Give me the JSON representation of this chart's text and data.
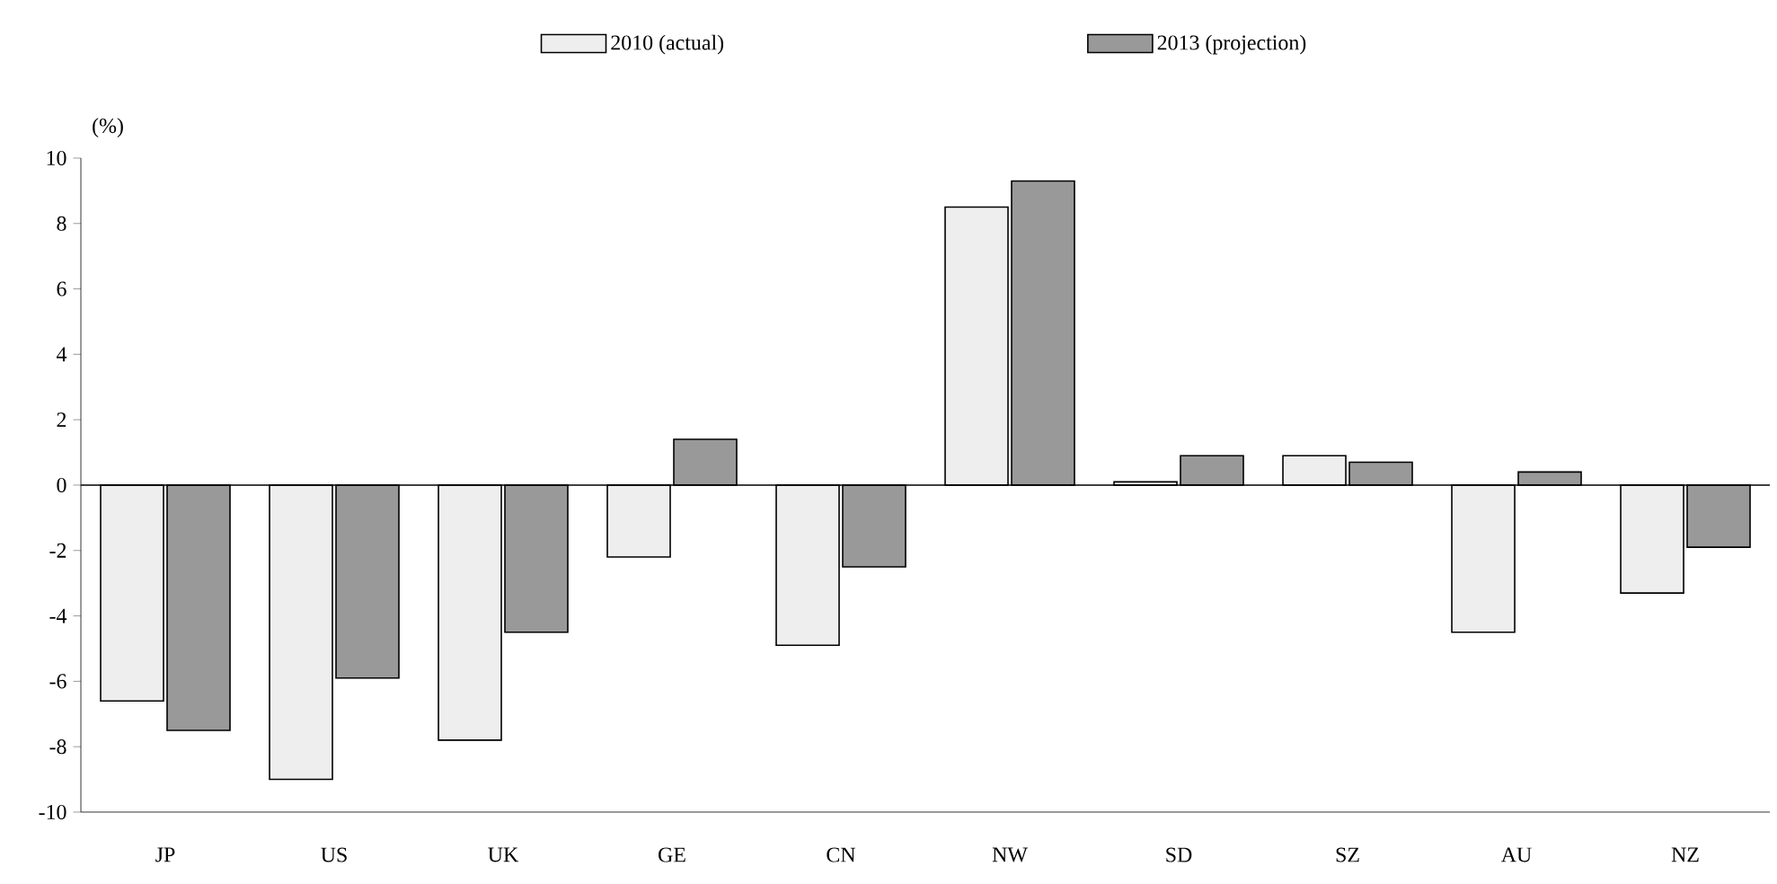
{
  "chart_data": {
    "type": "bar",
    "ylabel": "(%)",
    "categories": [
      "JP",
      "US",
      "UK",
      "GE",
      "CN",
      "NW",
      "SD",
      "SZ",
      "AU",
      "NZ"
    ],
    "series": [
      {
        "name": "2010 (actual)",
        "color": "#eeeeee",
        "values": [
          -6.6,
          -9.0,
          -7.8,
          -2.2,
          -4.9,
          8.5,
          0.1,
          0.9,
          -4.5,
          -3.3
        ]
      },
      {
        "name": "2013 (projection)",
        "color": "#999999",
        "values": [
          -7.5,
          -5.9,
          -4.5,
          1.4,
          -2.5,
          9.3,
          0.9,
          0.7,
          0.4,
          -1.9
        ]
      }
    ],
    "ylim": [
      -10,
      10
    ],
    "yticks": [
      -10,
      -8,
      -6,
      -4,
      -2,
      0,
      2,
      4,
      6,
      8,
      10
    ],
    "grid": false,
    "legend": "top",
    "ref_lines": [
      {
        "axis": "y",
        "value": 0
      }
    ]
  }
}
